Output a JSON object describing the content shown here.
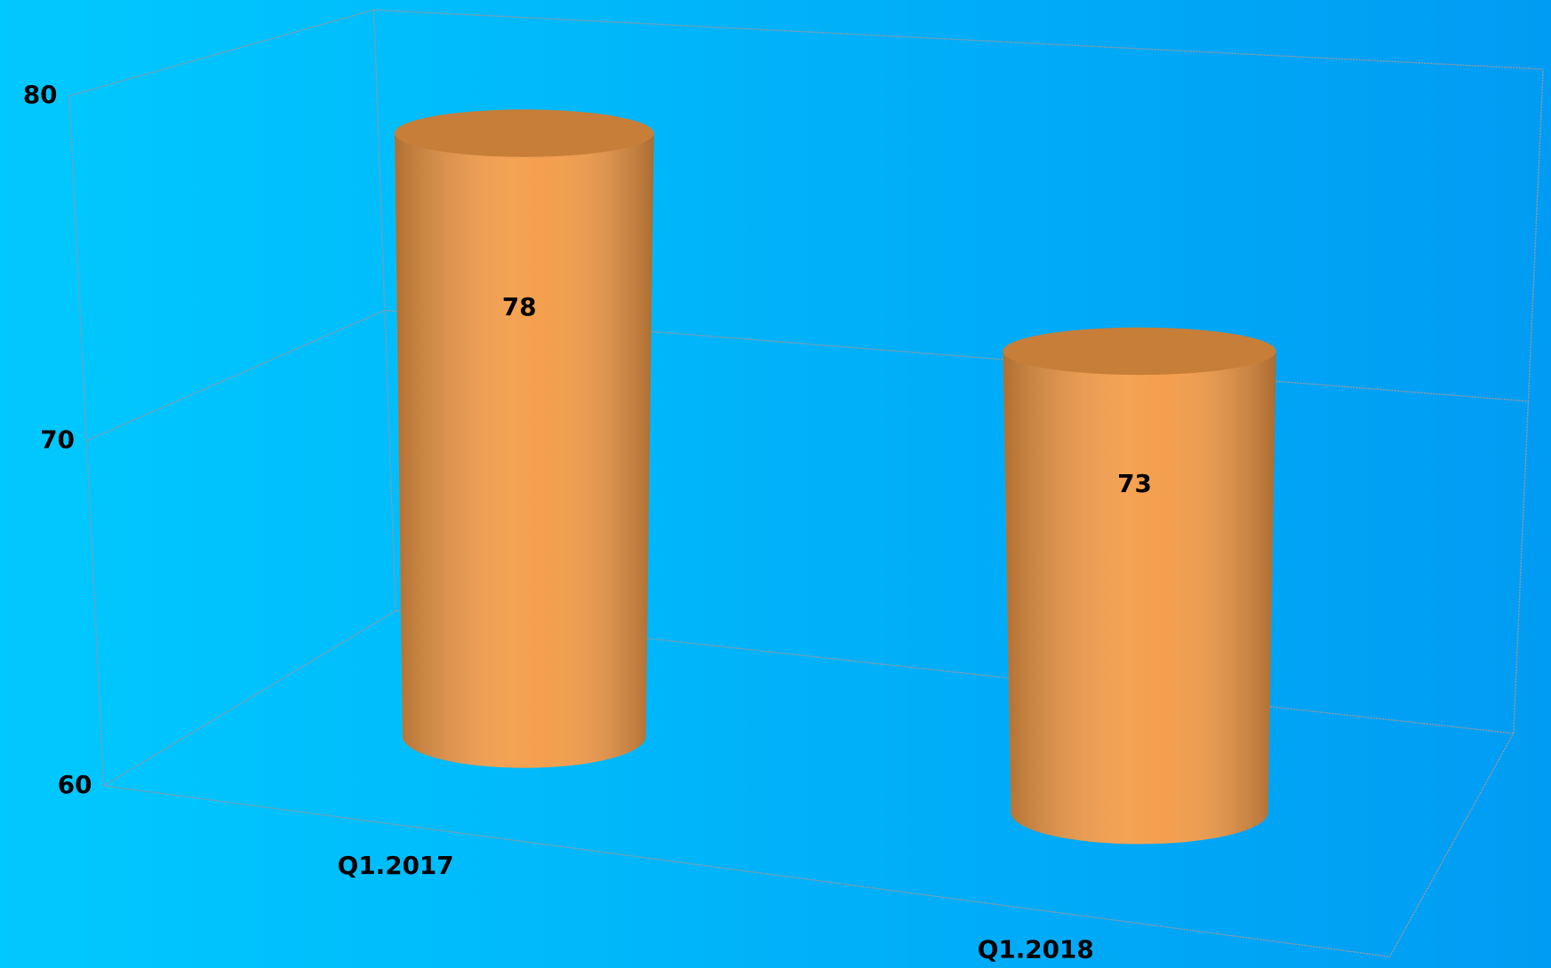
{
  "chart_data": {
    "type": "bar",
    "categories": [
      "Q1.2017",
      "Q1.2018"
    ],
    "values": [
      78,
      73
    ],
    "color": "#f39a45",
    "ylim": [
      60,
      80
    ],
    "yticks": [
      60,
      70,
      80
    ],
    "grid": true
  }
}
